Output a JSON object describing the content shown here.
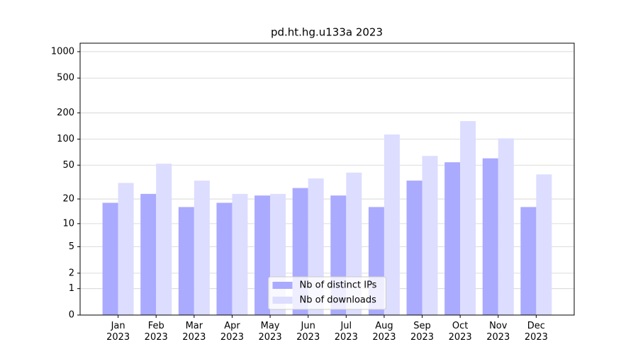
{
  "chart_data": {
    "type": "bar",
    "title": "pd.ht.hg.u133a 2023",
    "categories": [
      "Jan\n2023",
      "Feb\n2023",
      "Mar\n2023",
      "Apr\n2023",
      "May\n2023",
      "Jun\n2023",
      "Jul\n2023",
      "Aug\n2023",
      "Sep\n2023",
      "Oct\n2023",
      "Nov\n2023",
      "Dec\n2023"
    ],
    "series": [
      {
        "name": "Nb of distinct IPs",
        "color": "#aaaaff",
        "values": [
          18,
          23,
          16,
          18,
          22,
          27,
          22,
          16,
          33,
          54,
          60,
          16
        ]
      },
      {
        "name": "Nb of downloads",
        "color": "#ddddff",
        "values": [
          31,
          52,
          33,
          23,
          23,
          35,
          41,
          113,
          64,
          161,
          102,
          39
        ]
      }
    ],
    "yscale": "log1p",
    "ylim": [
      0,
      1249
    ],
    "yticks": [
      0,
      1,
      2,
      5,
      10,
      20,
      50,
      100,
      200,
      500,
      1000
    ],
    "grid": true,
    "legend": "lower center"
  }
}
